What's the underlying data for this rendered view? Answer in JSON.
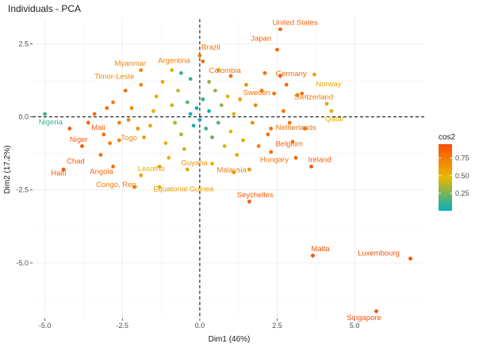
{
  "chart_data": {
    "type": "scatter",
    "title": "Individuals - PCA",
    "xlabel": "Dim1 (46%)",
    "ylabel": "Dim2 (17.2%)",
    "xlim": [
      -5.4,
      7.3
    ],
    "ylim": [
      -6.9,
      3.35
    ],
    "x_ticks": [
      -5.0,
      -2.5,
      0.0,
      2.5,
      5.0
    ],
    "x_tick_labels": [
      "-5.0",
      "-2.5",
      "0.0",
      "2.5",
      "5.0"
    ],
    "y_ticks": [
      2.5,
      0.0,
      -2.5,
      -5.0
    ],
    "y_tick_labels": [
      "2.5",
      "0.0",
      "-2.5",
      "-5.0"
    ],
    "reference_lines": {
      "x": 0,
      "y": 0
    },
    "grid": true,
    "color_variable": "cos2",
    "legend": {
      "title": "cos2",
      "position": "right",
      "ticks": [
        0.75,
        0.5,
        0.25
      ],
      "tick_labels": [
        "0.75",
        "0.50",
        "0.25"
      ],
      "range": [
        0.0,
        0.95
      ],
      "colors": [
        "#00AFBB",
        "#E7B800",
        "#FC4E07"
      ]
    },
    "points": [
      {
        "x": -5.0,
        "y": 0.1,
        "cos2": 0.1
      },
      {
        "x": -4.2,
        "y": -0.4,
        "cos2": 0.9
      },
      {
        "x": -3.8,
        "y": -1.0,
        "cos2": 0.9
      },
      {
        "x": -4.4,
        "y": -1.8,
        "cos2": 0.9
      },
      {
        "x": -3.2,
        "y": -1.3,
        "cos2": 0.85
      },
      {
        "x": -2.8,
        "y": -1.7,
        "cos2": 0.8
      },
      {
        "x": -1.9,
        "y": -2.0,
        "cos2": 0.55
      },
      {
        "x": -2.1,
        "y": -2.4,
        "cos2": 0.7
      },
      {
        "x": -1.3,
        "y": -2.4,
        "cos2": 0.5
      },
      {
        "x": -2.6,
        "y": -0.8,
        "cos2": 0.7
      },
      {
        "x": -1.9,
        "y": 1.6,
        "cos2": 0.7
      },
      {
        "x": -1.9,
        "y": 1.1,
        "cos2": 0.7
      },
      {
        "x": 0.1,
        "y": 1.9,
        "cos2": 0.8
      },
      {
        "x": 0.0,
        "y": 2.1,
        "cos2": 0.75
      },
      {
        "x": 1.0,
        "y": 1.4,
        "cos2": 0.8
      },
      {
        "x": 2.6,
        "y": 3.0,
        "cos2": 0.85
      },
      {
        "x": 2.5,
        "y": 2.3,
        "cos2": 0.85
      },
      {
        "x": 2.6,
        "y": 1.4,
        "cos2": 0.85
      },
      {
        "x": 3.7,
        "y": 1.45,
        "cos2": 0.55
      },
      {
        "x": 2.4,
        "y": 0.8,
        "cos2": 0.8
      },
      {
        "x": 3.3,
        "y": 0.8,
        "cos2": 0.8
      },
      {
        "x": 3.15,
        "y": 0.75,
        "cos2": 0.75
      },
      {
        "x": 4.1,
        "y": 0.45,
        "cos2": 0.55
      },
      {
        "x": 4.25,
        "y": 0.2,
        "cos2": 0.5
      },
      {
        "x": 2.3,
        "y": -0.4,
        "cos2": 0.8
      },
      {
        "x": 3.0,
        "y": -0.85,
        "cos2": 0.8
      },
      {
        "x": 2.3,
        "y": -1.2,
        "cos2": 0.8
      },
      {
        "x": 3.6,
        "y": -1.7,
        "cos2": 0.9
      },
      {
        "x": 1.6,
        "y": -1.8,
        "cos2": 0.6
      },
      {
        "x": 1.6,
        "y": -2.9,
        "cos2": 0.9
      },
      {
        "x": 3.65,
        "y": -4.75,
        "cos2": 0.95
      },
      {
        "x": 6.8,
        "y": -4.85,
        "cos2": 0.95
      },
      {
        "x": 5.7,
        "y": -6.65,
        "cos2": 0.95
      },
      {
        "x": -3.6,
        "y": -0.2,
        "cos2": 0.85
      },
      {
        "x": -3.4,
        "y": 0.1,
        "cos2": 0.8
      },
      {
        "x": -3.0,
        "y": 0.3,
        "cos2": 0.8
      },
      {
        "x": -2.8,
        "y": 0.5,
        "cos2": 0.75
      },
      {
        "x": -3.1,
        "y": -0.6,
        "cos2": 0.8
      },
      {
        "x": -2.9,
        "y": -0.9,
        "cos2": 0.75
      },
      {
        "x": -2.6,
        "y": -0.2,
        "cos2": 0.75
      },
      {
        "x": -2.3,
        "y": -0.1,
        "cos2": 0.7
      },
      {
        "x": -2.4,
        "y": 0.9,
        "cos2": 0.8
      },
      {
        "x": -2.2,
        "y": 0.3,
        "cos2": 0.7
      },
      {
        "x": -2.0,
        "y": -0.4,
        "cos2": 0.65
      },
      {
        "x": -1.8,
        "y": -0.7,
        "cos2": 0.6
      },
      {
        "x": -1.6,
        "y": -0.3,
        "cos2": 0.55
      },
      {
        "x": -1.5,
        "y": 0.2,
        "cos2": 0.5
      },
      {
        "x": -1.4,
        "y": 0.7,
        "cos2": 0.5
      },
      {
        "x": -1.2,
        "y": 1.2,
        "cos2": 0.55
      },
      {
        "x": -1.1,
        "y": -0.9,
        "cos2": 0.5
      },
      {
        "x": -1.0,
        "y": -1.4,
        "cos2": 0.5
      },
      {
        "x": -0.9,
        "y": 0.4,
        "cos2": 0.4
      },
      {
        "x": -0.8,
        "y": -0.2,
        "cos2": 0.35
      },
      {
        "x": -0.7,
        "y": 0.9,
        "cos2": 0.4
      },
      {
        "x": -0.6,
        "y": -0.6,
        "cos2": 0.35
      },
      {
        "x": -0.5,
        "y": -1.1,
        "cos2": 0.4
      },
      {
        "x": -0.4,
        "y": 0.5,
        "cos2": 0.2
      },
      {
        "x": -0.3,
        "y": 0.1,
        "cos2": 0.05
      },
      {
        "x": -0.2,
        "y": -0.3,
        "cos2": 0.05
      },
      {
        "x": -0.1,
        "y": 0.3,
        "cos2": 0.05
      },
      {
        "x": 0.0,
        "y": -0.1,
        "cos2": 0.05
      },
      {
        "x": 0.1,
        "y": 0.6,
        "cos2": 0.1
      },
      {
        "x": 0.2,
        "y": -0.4,
        "cos2": 0.1
      },
      {
        "x": 0.3,
        "y": 0.2,
        "cos2": 0.05
      },
      {
        "x": 0.4,
        "y": -0.7,
        "cos2": 0.2
      },
      {
        "x": 0.5,
        "y": 0.9,
        "cos2": 0.3
      },
      {
        "x": 0.6,
        "y": -0.2,
        "cos2": 0.2
      },
      {
        "x": 0.7,
        "y": 0.4,
        "cos2": 0.3
      },
      {
        "x": 0.8,
        "y": -1.0,
        "cos2": 0.45
      },
      {
        "x": 0.9,
        "y": 0.7,
        "cos2": 0.45
      },
      {
        "x": 1.0,
        "y": -0.5,
        "cos2": 0.45
      },
      {
        "x": 1.1,
        "y": 0.1,
        "cos2": 0.45
      },
      {
        "x": 1.2,
        "y": -1.3,
        "cos2": 0.55
      },
      {
        "x": 1.3,
        "y": 0.6,
        "cos2": 0.55
      },
      {
        "x": 1.4,
        "y": -0.8,
        "cos2": 0.55
      },
      {
        "x": 1.5,
        "y": 1.1,
        "cos2": 0.65
      },
      {
        "x": 1.7,
        "y": -0.2,
        "cos2": 0.65
      },
      {
        "x": 1.8,
        "y": 0.4,
        "cos2": 0.7
      },
      {
        "x": 1.9,
        "y": -1.0,
        "cos2": 0.7
      },
      {
        "x": 2.0,
        "y": 0.9,
        "cos2": 0.75
      },
      {
        "x": 2.1,
        "y": 1.5,
        "cos2": 0.8
      },
      {
        "x": 2.2,
        "y": -0.6,
        "cos2": 0.8
      },
      {
        "x": 2.7,
        "y": 0.2,
        "cos2": 0.8
      },
      {
        "x": 2.8,
        "y": 1.1,
        "cos2": 0.85
      },
      {
        "x": 2.9,
        "y": -0.2,
        "cos2": 0.8
      },
      {
        "x": 3.4,
        "y": -0.4,
        "cos2": 0.8
      },
      {
        "x": 3.1,
        "y": -1.4,
        "cos2": 0.85
      },
      {
        "x": -0.6,
        "y": 1.5,
        "cos2": 0.1
      },
      {
        "x": -0.3,
        "y": 1.3,
        "cos2": 0.1
      },
      {
        "x": 0.3,
        "y": 1.2,
        "cos2": 0.3
      },
      {
        "x": 0.6,
        "y": 1.6,
        "cos2": 0.55
      },
      {
        "x": -0.9,
        "y": 1.6,
        "cos2": 0.5
      },
      {
        "x": -1.3,
        "y": -1.7,
        "cos2": 0.6
      },
      {
        "x": -0.4,
        "y": -1.8,
        "cos2": 0.55
      },
      {
        "x": 0.4,
        "y": -1.6,
        "cos2": 0.5
      },
      {
        "x": 1.1,
        "y": -1.9,
        "cos2": 0.6
      }
    ],
    "labels": [
      {
        "text": "United States",
        "x": 2.35,
        "y": 3.15,
        "anchor": "start"
      },
      {
        "text": "Japan",
        "x": 1.65,
        "y": 2.6,
        "anchor": "start"
      },
      {
        "text": "Brazil",
        "x": 0.05,
        "y": 2.3,
        "anchor": "start"
      },
      {
        "text": "Argentina",
        "x": -1.35,
        "y": 1.85,
        "anchor": "start"
      },
      {
        "text": "Myanmar",
        "x": -2.75,
        "y": 1.75,
        "anchor": "start"
      },
      {
        "text": "Colombia",
        "x": 0.3,
        "y": 1.5,
        "anchor": "start"
      },
      {
        "text": "Germany",
        "x": 2.45,
        "y": 1.4,
        "anchor": "start"
      },
      {
        "text": "Timor-Leste",
        "x": -3.4,
        "y": 1.3,
        "anchor": "start"
      },
      {
        "text": "Norway",
        "x": 3.75,
        "y": 1.05,
        "anchor": "start"
      },
      {
        "text": "Sweden",
        "x": 1.4,
        "y": 0.75,
        "anchor": "start"
      },
      {
        "text": "Switzerland",
        "x": 3.05,
        "y": 0.6,
        "anchor": "start"
      },
      {
        "text": "Qatar",
        "x": 4.05,
        "y": -0.15,
        "anchor": "start"
      },
      {
        "text": "Nigeria",
        "x": -5.2,
        "y": -0.25,
        "anchor": "start"
      },
      {
        "text": "Mali",
        "x": -3.5,
        "y": -0.45,
        "anchor": "start"
      },
      {
        "text": "Netherlands",
        "x": 2.45,
        "y": -0.45,
        "anchor": "start"
      },
      {
        "text": "Niger",
        "x": -4.2,
        "y": -0.85,
        "anchor": "start"
      },
      {
        "text": "Togo",
        "x": -2.55,
        "y": -0.8,
        "anchor": "start"
      },
      {
        "text": "Belgium",
        "x": 2.45,
        "y": -1.0,
        "anchor": "start"
      },
      {
        "text": "Chad",
        "x": -4.3,
        "y": -1.6,
        "anchor": "start"
      },
      {
        "text": "Ireland",
        "x": 3.5,
        "y": -1.55,
        "anchor": "start"
      },
      {
        "text": "Guyana",
        "x": -0.6,
        "y": -1.65,
        "anchor": "start"
      },
      {
        "text": "Lesotho",
        "x": -2.0,
        "y": -1.85,
        "anchor": "start"
      },
      {
        "text": "Malaysia",
        "x": 0.55,
        "y": -1.9,
        "anchor": "start"
      },
      {
        "text": "Haiti",
        "x": -4.8,
        "y": -2.0,
        "anchor": "start"
      },
      {
        "text": "Angola",
        "x": -3.55,
        "y": -1.95,
        "anchor": "start"
      },
      {
        "text": "Hungary",
        "x": 1.95,
        "y": -1.55,
        "anchor": "start"
      },
      {
        "text": "Congo, Rep.",
        "x": -3.35,
        "y": -2.4,
        "anchor": "start"
      },
      {
        "text": "Equatorial Guinea",
        "x": -1.5,
        "y": -2.55,
        "anchor": "start"
      },
      {
        "text": "Seychelles",
        "x": 1.2,
        "y": -2.75,
        "anchor": "start"
      },
      {
        "text": "Malta",
        "x": 3.6,
        "y": -4.6,
        "anchor": "start"
      },
      {
        "text": "Luxembourg",
        "x": 5.1,
        "y": -4.75,
        "anchor": "start"
      },
      {
        "text": "Singapore",
        "x": 4.75,
        "y": -6.95,
        "anchor": "start"
      }
    ],
    "label_cos2": [
      0.85,
      0.85,
      0.8,
      0.75,
      0.7,
      0.8,
      0.85,
      0.7,
      0.55,
      0.8,
      0.75,
      0.5,
      0.1,
      0.85,
      0.8,
      0.9,
      0.7,
      0.85,
      0.9,
      0.9,
      0.65,
      0.55,
      0.75,
      0.9,
      0.85,
      0.8,
      0.75,
      0.6,
      0.9,
      0.95,
      0.95,
      0.95
    ]
  }
}
